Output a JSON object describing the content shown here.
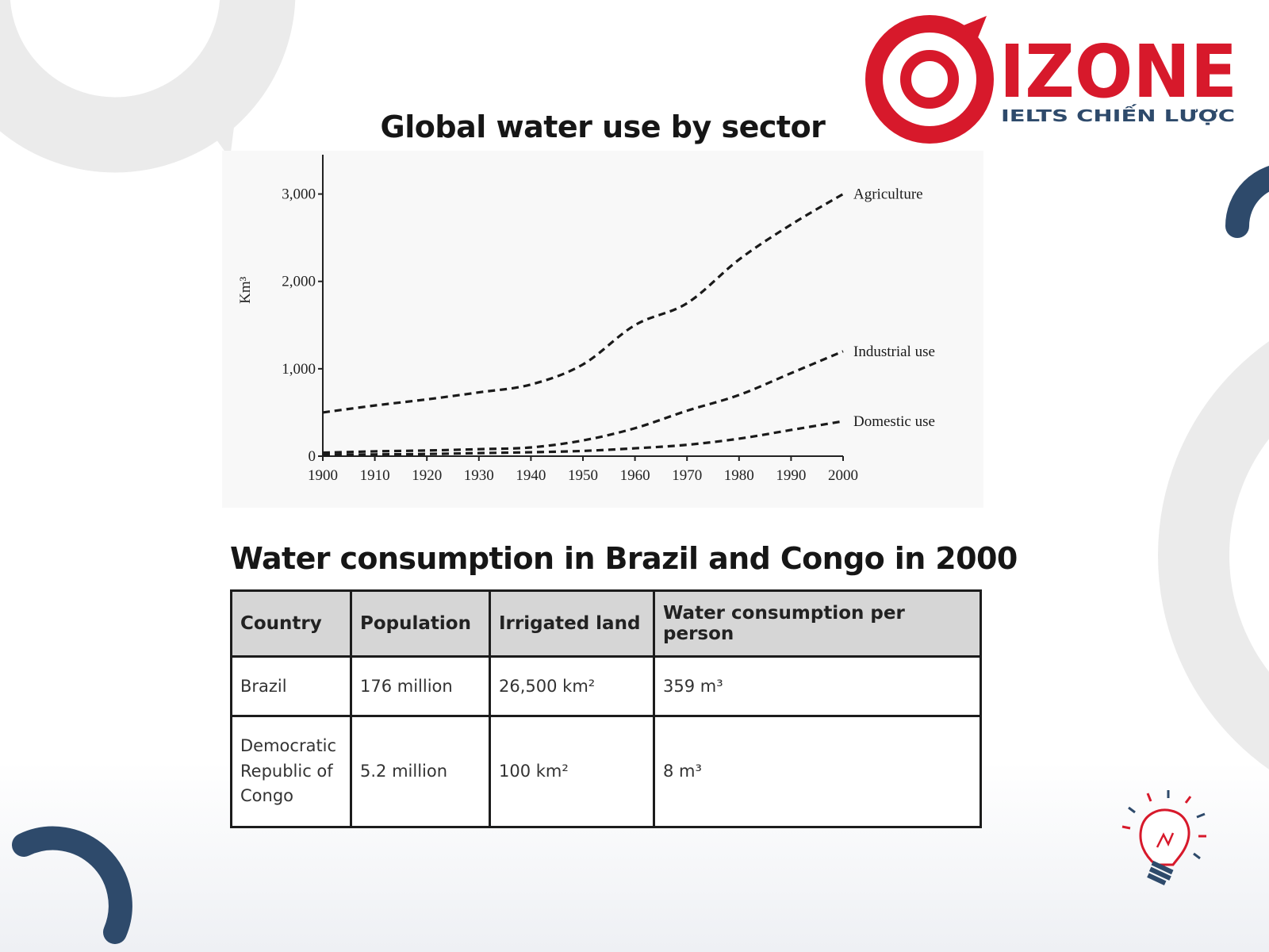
{
  "brand": {
    "name": "IZONE",
    "tagline": "IELTS CHIẾN LƯỢC",
    "primary_color": "#d7192b",
    "accent_color": "#2e4a6b",
    "icons": [
      "target-logo-icon",
      "lightbulb-icon"
    ]
  },
  "chart_data": {
    "type": "line",
    "title": "Global water use by sector",
    "xlabel": "",
    "ylabel": "Km³",
    "xlim": [
      1900,
      2000
    ],
    "ylim": [
      0,
      3000
    ],
    "x_ticks": [
      "1900",
      "1910",
      "1920",
      "1930",
      "1940",
      "1950",
      "1960",
      "1970",
      "1980",
      "1990",
      "2000"
    ],
    "y_ticks": [
      "0",
      "1,000",
      "2,000",
      "3,000"
    ],
    "line_style": "dashed",
    "series": [
      {
        "name": "Agriculture",
        "x": [
          1900,
          1910,
          1920,
          1930,
          1940,
          1950,
          1960,
          1970,
          1980,
          1990,
          2000
        ],
        "y": [
          500,
          580,
          650,
          730,
          820,
          1050,
          1500,
          1750,
          2250,
          2650,
          3000
        ]
      },
      {
        "name": "Industrial use",
        "x": [
          1900,
          1910,
          1920,
          1930,
          1940,
          1950,
          1960,
          1970,
          1980,
          1990,
          2000
        ],
        "y": [
          40,
          55,
          65,
          80,
          100,
          180,
          320,
          520,
          700,
          950,
          1200
        ]
      },
      {
        "name": "Domestic use",
        "x": [
          1900,
          1910,
          1920,
          1930,
          1940,
          1950,
          1960,
          1970,
          1980,
          1990,
          2000
        ],
        "y": [
          15,
          20,
          25,
          35,
          45,
          60,
          90,
          130,
          200,
          300,
          400
        ]
      }
    ]
  },
  "table": {
    "title": "Water consumption in Brazil and Congo in 2000",
    "headers": [
      "Country",
      "Population",
      "Irrigated land",
      "Water consumption per person"
    ],
    "rows": [
      [
        "Brazil",
        "176 million",
        "26,500 km²",
        "359 m³"
      ],
      [
        "Democratic Republic of Congo",
        "5.2 million",
        "100 km²",
        "8 m³"
      ]
    ]
  }
}
